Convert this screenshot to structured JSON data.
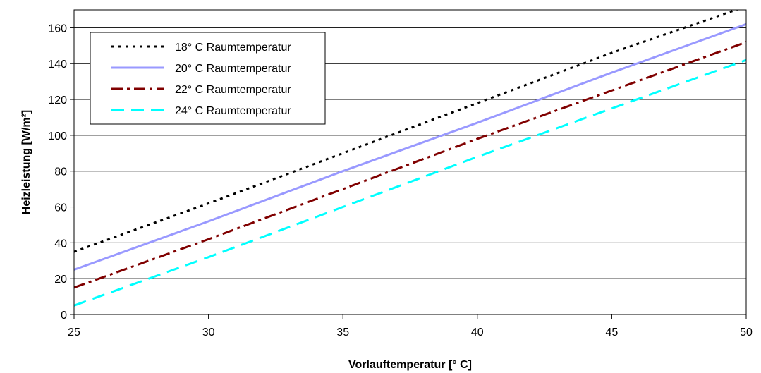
{
  "chart_data": {
    "type": "line",
    "title": "",
    "xlabel": "Vorlauftemperatur [° C]",
    "ylabel": "Heizleistung [W/m²]",
    "xlim": [
      25,
      50
    ],
    "ylim": [
      0,
      170
    ],
    "x_ticks": [
      25,
      30,
      35,
      40,
      45,
      50
    ],
    "y_ticks": [
      0,
      20,
      40,
      60,
      80,
      100,
      120,
      140,
      160
    ],
    "grid": "horizontal",
    "legend_position": "top-left",
    "x": [
      25,
      30,
      35,
      40,
      45,
      50
    ],
    "series": [
      {
        "name": "18° C Raumtemperatur",
        "values": [
          35,
          62,
          90,
          118,
          146,
          172
        ],
        "color": "#000000",
        "style": "dotted"
      },
      {
        "name": "20° C Raumtemperatur",
        "values": [
          25,
          52,
          80,
          107,
          135,
          162
        ],
        "color": "#9999ff",
        "style": "solid"
      },
      {
        "name": "22° C Raumtemperatur",
        "values": [
          15,
          42,
          70,
          98,
          125,
          152
        ],
        "color": "#800000",
        "style": "dash-dot"
      },
      {
        "name": "24° C Raumtemperatur",
        "values": [
          5,
          32,
          60,
          88,
          115,
          142
        ],
        "color": "#00ffff",
        "style": "dashed"
      }
    ]
  }
}
